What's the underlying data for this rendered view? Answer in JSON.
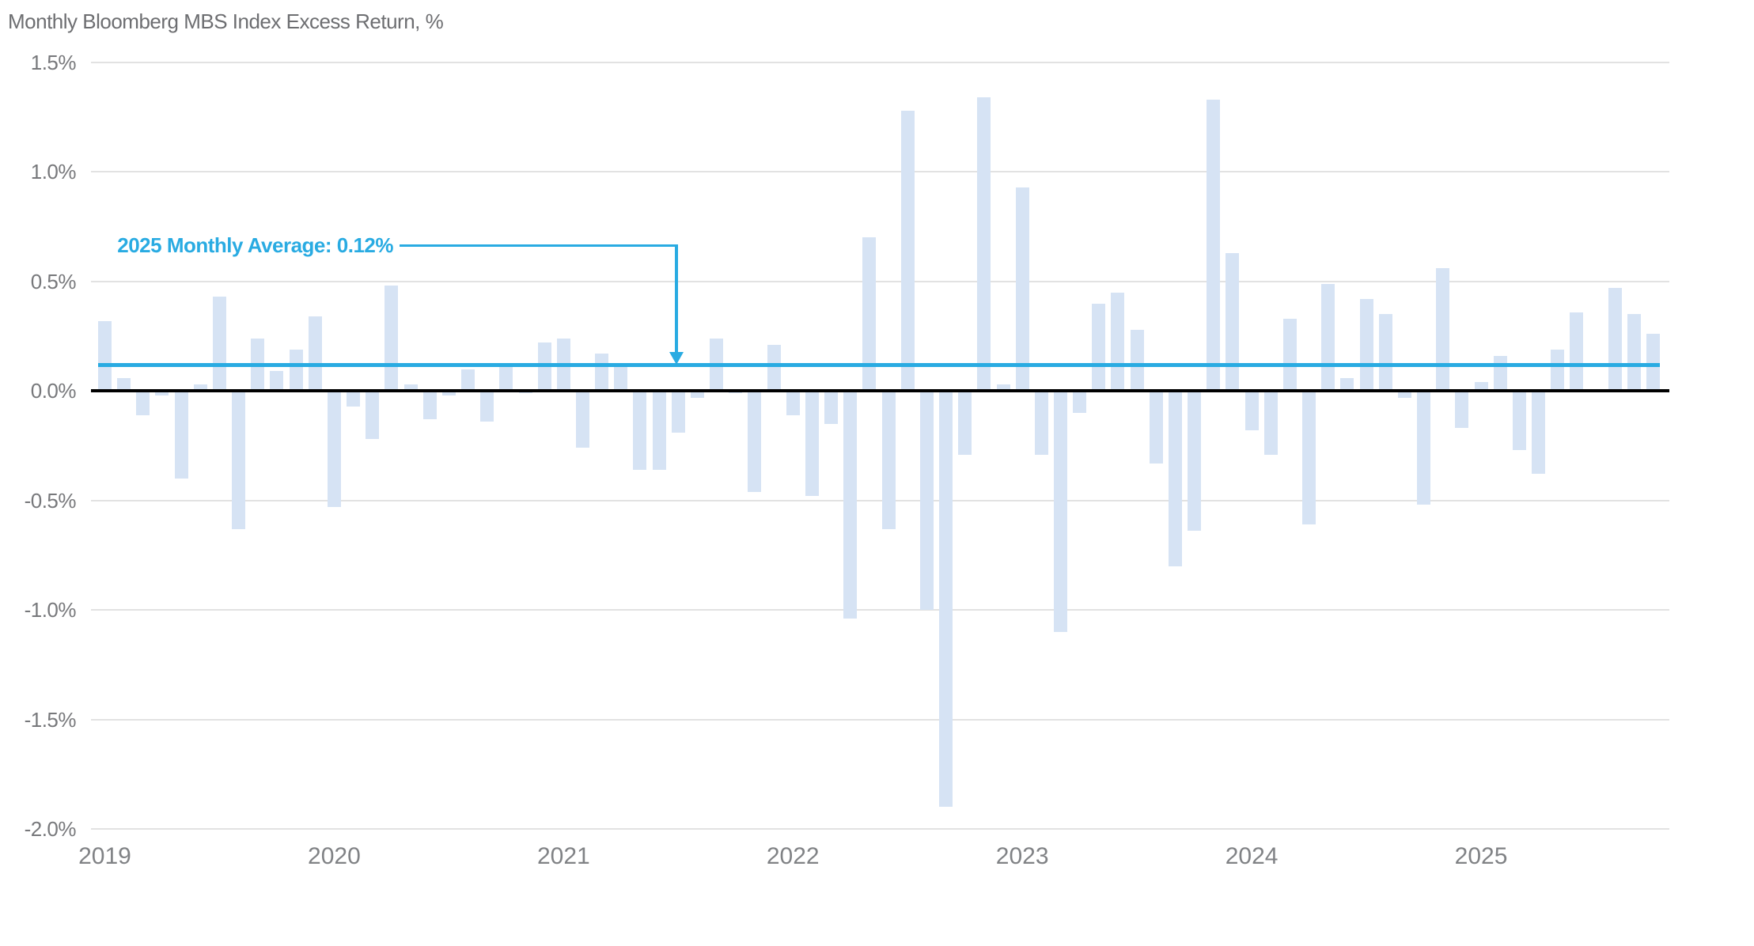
{
  "chart_data": {
    "type": "bar",
    "title": "Monthly Bloomberg MBS Index Excess Return, %",
    "x_start": "2019-01",
    "x_end": "2025-10",
    "year_labels": [
      "2019",
      "2020",
      "2021",
      "2022",
      "2023",
      "2024",
      "2025"
    ],
    "series_by_year": {
      "2019": [
        0.32,
        0.06,
        -0.11,
        -0.02,
        -0.4,
        0.03,
        0.43,
        -0.63,
        0.24,
        0.09,
        0.19,
        0.34
      ],
      "2020": [
        -0.53,
        -0.07,
        -0.22,
        0.48,
        0.03,
        -0.13,
        -0.02,
        0.1,
        -0.14,
        0.11,
        -0.01,
        0.22
      ],
      "2021": [
        0.24,
        -0.26,
        0.17,
        0.11,
        -0.36,
        -0.36,
        -0.19,
        -0.03,
        0.24,
        -0.01,
        -0.46,
        0.21
      ],
      "2022": [
        -0.11,
        -0.48,
        -0.15,
        -1.04,
        0.7,
        -0.63,
        1.28,
        -1.0,
        -1.9,
        -0.29,
        1.34,
        0.03
      ],
      "2023": [
        0.93,
        -0.29,
        -1.1,
        -0.1,
        0.4,
        0.45,
        0.28,
        -0.33,
        -0.8,
        -0.64,
        1.33,
        0.63
      ],
      "2024": [
        -0.18,
        -0.29,
        0.33,
        -0.61,
        0.49,
        0.06,
        0.42,
        0.35,
        -0.03,
        -0.52,
        0.56,
        -0.17
      ],
      "2025": [
        0.04,
        0.16,
        -0.27,
        -0.38,
        0.19,
        0.36,
        0.0,
        0.47,
        0.35,
        0.26
      ]
    },
    "y_axis": {
      "max": 1.5,
      "min": -2.0,
      "ticks": [
        {
          "label": "1.5%",
          "value": 1.5
        },
        {
          "label": "1.0%",
          "value": 1.0
        },
        {
          "label": "0.5%",
          "value": 0.5
        },
        {
          "label": "0.0%",
          "value": 0.0
        },
        {
          "label": "-0.5%",
          "value": -0.5
        },
        {
          "label": "-1.0%",
          "value": -1.0
        },
        {
          "label": "-1.5%",
          "value": -1.5
        },
        {
          "label": "-2.0%",
          "value": -2.0
        }
      ]
    },
    "average_line": {
      "label": "2025 Monthly Average: 0.12%",
      "value": 0.12
    },
    "grid": "horizontal-only",
    "legend": "none",
    "colors": {
      "bar": "#d6e3f4",
      "accent": "#29abe2",
      "zero_line": "#000000",
      "gridline": "#e2e2e2",
      "title_text": "#6d6e71",
      "axis_text": "#77787b"
    }
  }
}
